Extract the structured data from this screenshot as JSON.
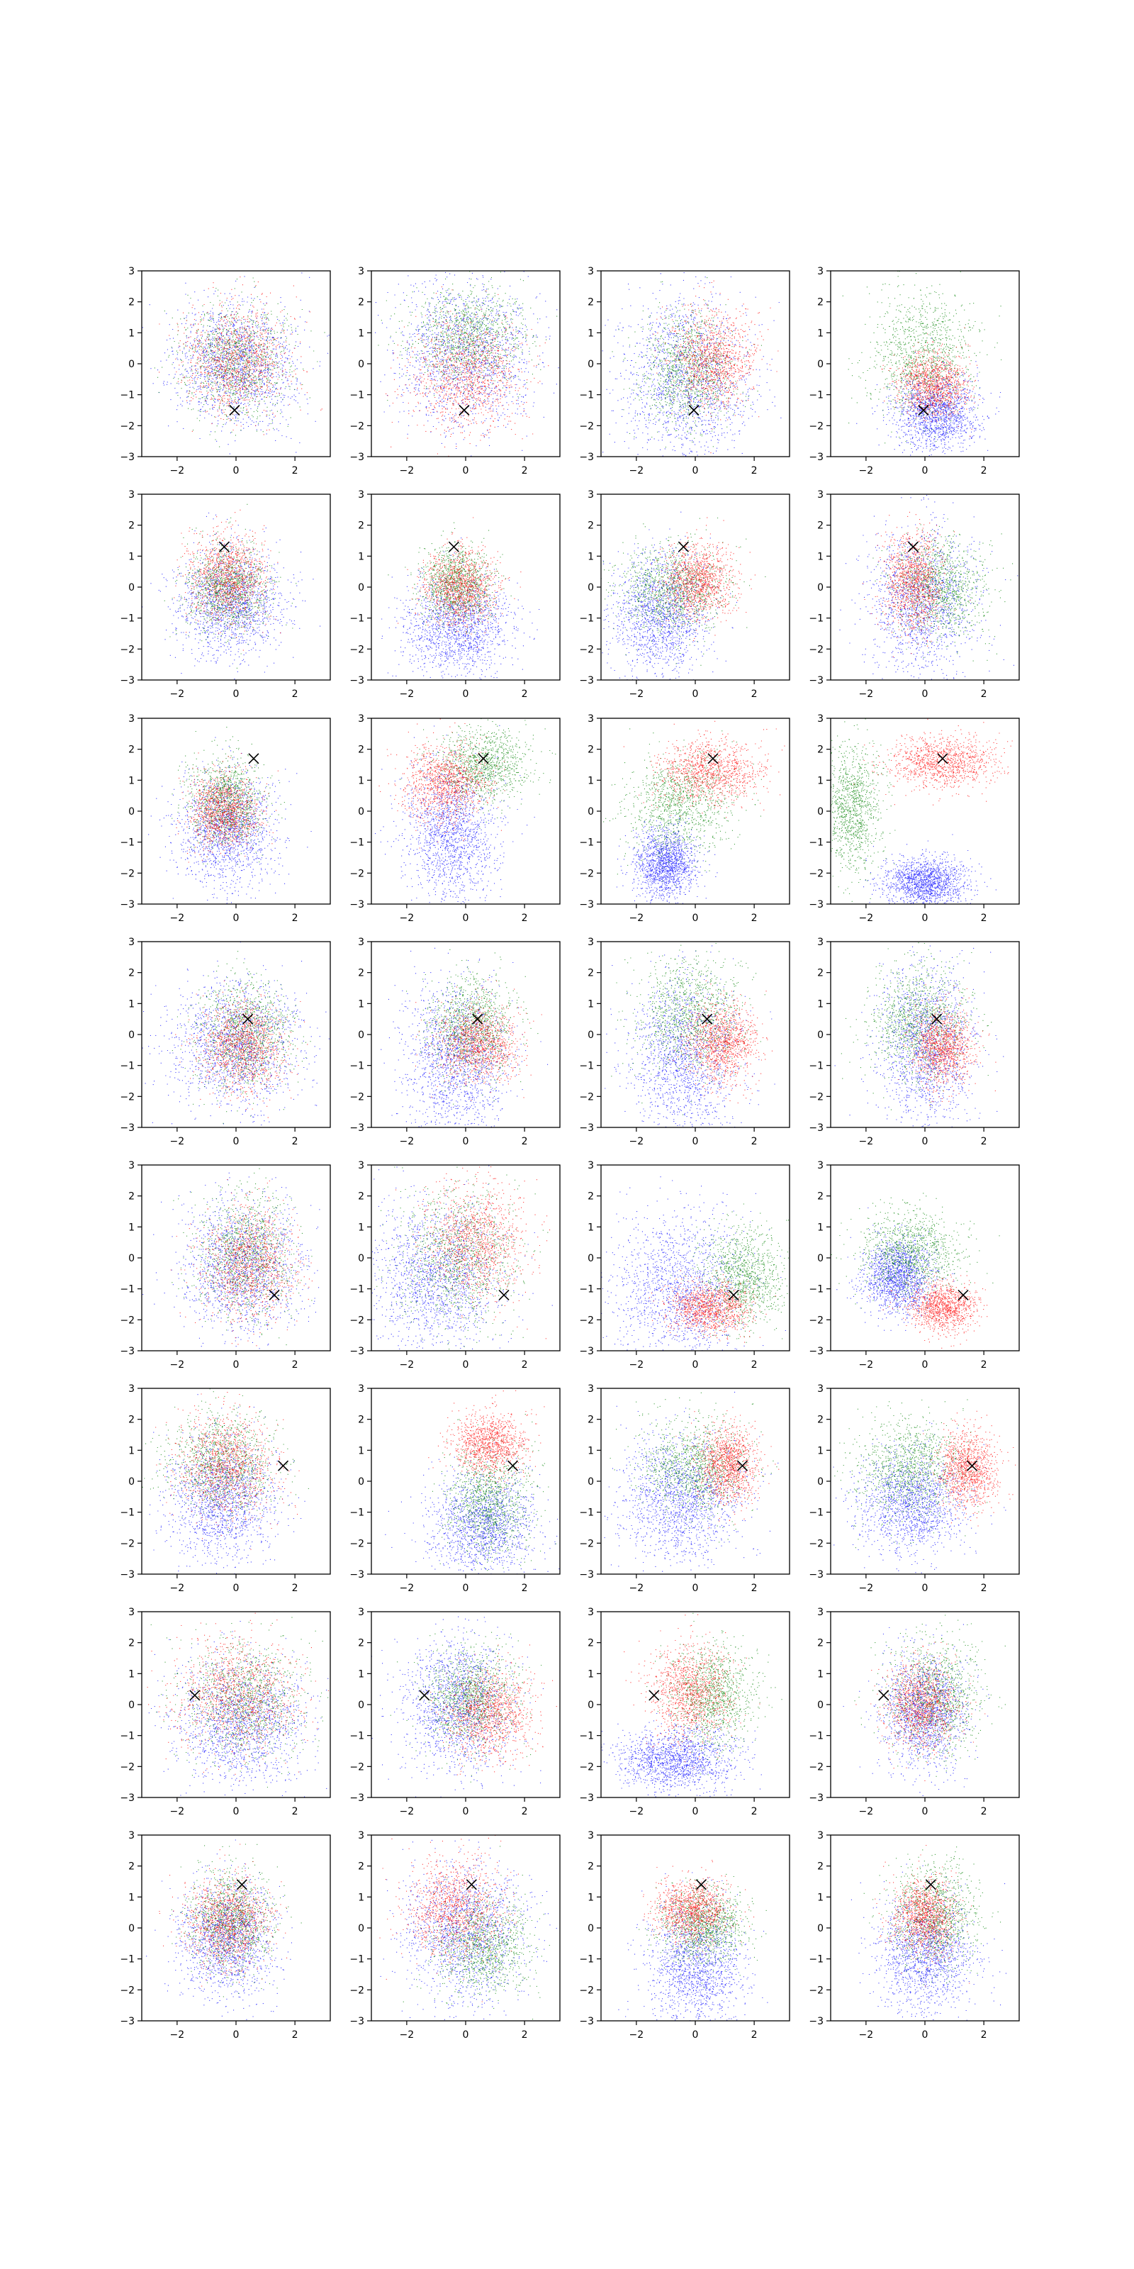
{
  "figure": {
    "grid_rows": 8,
    "grid_cols": 4,
    "background": "#ffffff",
    "axes_color": "#000000"
  },
  "colors": {
    "blue": "#0000ff",
    "green": "#008000",
    "red": "#ff0000",
    "marker": "#000000"
  },
  "point_counts": {
    "blue": 1500,
    "green": 1100,
    "red": 1100
  },
  "chart_data": {
    "type": "scatter",
    "title": "",
    "xlabel": "",
    "ylabel": "",
    "xlim": [
      -3.2,
      3.2
    ],
    "ylim": [
      -3,
      3
    ],
    "x_ticks": [
      -2,
      0,
      2
    ],
    "y_ticks": [
      -3,
      -2,
      -1,
      0,
      1,
      2,
      3
    ],
    "x_tick_labels": [
      "−2",
      "0",
      "2"
    ],
    "y_tick_labels": [
      "−3",
      "−2",
      "−1",
      "0",
      "1",
      "2",
      "3"
    ],
    "grid": false,
    "legend": "none",
    "series_colors": [
      "blue",
      "green",
      "red"
    ],
    "marker_symbol": "x",
    "rows": [
      {
        "marker": [
          -0.05,
          -1.5
        ],
        "panels": [
          {
            "blue": [
              0,
              0,
              1.0,
              1.0
            ],
            "green": [
              0,
              0.1,
              0.9,
              0.9
            ],
            "red": [
              0,
              0.1,
              0.85,
              0.85
            ]
          },
          {
            "blue": [
              0,
              0.3,
              1.2,
              1.2
            ],
            "green": [
              0,
              0.9,
              1.0,
              0.8
            ],
            "red": [
              0,
              -0.4,
              0.9,
              0.9
            ]
          },
          {
            "blue": [
              -0.3,
              -0.5,
              1.1,
              1.3
            ],
            "green": [
              -0.3,
              -0.2,
              0.8,
              0.9
            ],
            "red": [
              0.6,
              0.2,
              0.7,
              0.8
            ]
          },
          {
            "blue": [
              0.4,
              -1.6,
              0.7,
              0.6
            ],
            "green": [
              -0.1,
              0.3,
              0.9,
              1.0
            ],
            "red": [
              0.3,
              -0.7,
              0.6,
              0.5
            ]
          }
        ]
      },
      {
        "marker": [
          -0.4,
          1.3
        ],
        "panels": [
          {
            "blue": [
              -0.2,
              -0.5,
              0.9,
              0.9
            ],
            "green": [
              -0.3,
              0.0,
              0.7,
              0.7
            ],
            "red": [
              -0.3,
              0.3,
              0.65,
              0.7
            ]
          },
          {
            "blue": [
              -0.3,
              -1.3,
              0.9,
              0.8
            ],
            "green": [
              -0.3,
              0.1,
              0.6,
              0.6
            ],
            "red": [
              -0.2,
              0.0,
              0.6,
              0.6
            ]
          },
          {
            "blue": [
              -1.2,
              -0.9,
              0.8,
              1.0
            ],
            "green": [
              -0.8,
              -0.1,
              0.9,
              0.7
            ],
            "red": [
              0.1,
              0.2,
              0.6,
              0.6
            ]
          },
          {
            "blue": [
              -0.1,
              -0.5,
              0.9,
              1.2
            ],
            "green": [
              0.5,
              0.0,
              0.8,
              0.8
            ],
            "red": [
              -0.4,
              0.2,
              0.5,
              0.8
            ]
          }
        ]
      },
      {
        "marker": [
          0.6,
          1.7
        ],
        "panels": [
          {
            "blue": [
              -0.3,
              -0.6,
              0.8,
              0.9
            ],
            "green": [
              -0.3,
              0.3,
              0.6,
              0.7
            ],
            "red": [
              -0.4,
              0.0,
              0.6,
              0.6
            ]
          },
          {
            "blue": [
              -0.5,
              -0.7,
              0.8,
              1.1
            ],
            "green": [
              0.6,
              1.5,
              0.8,
              0.6
            ],
            "red": [
              -0.7,
              0.9,
              0.7,
              0.6
            ]
          },
          {
            "blue": [
              -1.0,
              -1.7,
              0.5,
              0.6
            ],
            "green": [
              -0.5,
              0.2,
              0.9,
              0.8
            ],
            "red": [
              0.5,
              1.3,
              0.9,
              0.5
            ]
          },
          {
            "blue": [
              0.0,
              -2.3,
              0.7,
              0.4
            ],
            "green": [
              -2.5,
              0.1,
              0.5,
              1.0
            ],
            "red": [
              0.6,
              1.6,
              0.9,
              0.4
            ]
          }
        ]
      },
      {
        "marker": [
          0.4,
          0.5
        ],
        "panels": [
          {
            "blue": [
              0,
              -0.3,
              1.1,
              1.0
            ],
            "green": [
              0.3,
              0.0,
              0.8,
              0.9
            ],
            "red": [
              0.2,
              -0.4,
              0.7,
              0.7
            ]
          },
          {
            "blue": [
              -0.3,
              -0.8,
              0.9,
              1.2
            ],
            "green": [
              0.2,
              0.3,
              0.7,
              0.8
            ],
            "red": [
              0.4,
              -0.3,
              0.7,
              0.6
            ]
          },
          {
            "blue": [
              -0.4,
              -0.8,
              0.9,
              1.3
            ],
            "green": [
              -0.2,
              0.6,
              0.9,
              0.9
            ],
            "red": [
              0.9,
              -0.3,
              0.6,
              0.6
            ]
          },
          {
            "blue": [
              0.0,
              -0.4,
              0.8,
              1.3
            ],
            "green": [
              -0.2,
              0.4,
              0.8,
              0.9
            ],
            "red": [
              0.6,
              -0.4,
              0.5,
              0.6
            ]
          }
        ]
      },
      {
        "marker": [
          1.3,
          -1.2
        ],
        "panels": [
          {
            "blue": [
              0.2,
              -0.3,
              1.0,
              1.1
            ],
            "green": [
              0.3,
              0.1,
              0.8,
              1.0
            ],
            "red": [
              0.4,
              -0.2,
              0.8,
              0.9
            ]
          },
          {
            "blue": [
              -1.0,
              -0.6,
              1.1,
              1.2
            ],
            "green": [
              -0.2,
              0.0,
              1.0,
              1.1
            ],
            "red": [
              0.3,
              0.5,
              0.8,
              0.9
            ]
          },
          {
            "blue": [
              -0.5,
              -1.0,
              1.1,
              1.2
            ],
            "green": [
              1.6,
              -0.6,
              0.7,
              0.8
            ],
            "red": [
              0.5,
              -1.6,
              0.7,
              0.4
            ]
          },
          {
            "blue": [
              -0.9,
              -0.6,
              0.6,
              0.6
            ],
            "green": [
              -0.5,
              0.2,
              0.9,
              0.7
            ],
            "red": [
              0.6,
              -1.6,
              0.6,
              0.4
            ]
          }
        ]
      },
      {
        "marker": [
          1.6,
          0.5
        ],
        "panels": [
          {
            "blue": [
              -0.5,
              -0.6,
              0.9,
              1.0
            ],
            "green": [
              -0.5,
              0.6,
              0.9,
              0.8
            ],
            "red": [
              -0.3,
              0.5,
              0.8,
              0.8
            ]
          },
          {
            "blue": [
              0.6,
              -1.4,
              0.9,
              0.8
            ],
            "green": [
              0.8,
              -0.6,
              0.7,
              0.9
            ],
            "red": [
              0.8,
              1.2,
              0.6,
              0.5
            ]
          },
          {
            "blue": [
              -0.5,
              -0.6,
              1.0,
              1.0
            ],
            "green": [
              0.0,
              0.5,
              0.9,
              0.8
            ],
            "red": [
              1.1,
              0.5,
              0.5,
              0.6
            ]
          },
          {
            "blue": [
              -0.5,
              -0.7,
              0.9,
              0.8
            ],
            "green": [
              -0.5,
              0.4,
              0.9,
              0.8
            ],
            "red": [
              1.4,
              0.4,
              0.5,
              0.6
            ]
          }
        ]
      },
      {
        "marker": [
          -1.4,
          0.3
        ],
        "panels": [
          {
            "blue": [
              0.2,
              -0.6,
              1.1,
              1.0
            ],
            "green": [
              0.3,
              0.2,
              1.0,
              0.9
            ],
            "red": [
              0.0,
              0.3,
              1.0,
              0.9
            ]
          },
          {
            "blue": [
              -0.3,
              0.0,
              0.9,
              1.1
            ],
            "green": [
              0.2,
              0.2,
              0.8,
              0.8
            ],
            "red": [
              0.8,
              -0.3,
              0.7,
              0.7
            ]
          },
          {
            "blue": [
              -0.6,
              -1.8,
              1.0,
              0.5
            ],
            "green": [
              0.6,
              0.3,
              0.7,
              0.8
            ],
            "red": [
              -0.2,
              0.4,
              0.7,
              0.8
            ]
          },
          {
            "blue": [
              0.0,
              -0.2,
              0.7,
              0.9
            ],
            "green": [
              0.3,
              0.3,
              0.8,
              0.9
            ],
            "red": [
              -0.1,
              0.0,
              0.6,
              0.7
            ]
          }
        ]
      },
      {
        "marker": [
          0.2,
          1.4
        ],
        "panels": [
          {
            "blue": [
              -0.3,
              -0.3,
              0.8,
              0.9
            ],
            "green": [
              -0.2,
              0.2,
              0.7,
              0.8
            ],
            "red": [
              -0.3,
              0.2,
              0.7,
              0.7
            ]
          },
          {
            "blue": [
              0.0,
              -0.1,
              1.0,
              1.1
            ],
            "green": [
              0.6,
              -0.6,
              0.8,
              0.8
            ],
            "red": [
              -0.4,
              0.6,
              0.8,
              0.8
            ]
          },
          {
            "blue": [
              0.0,
              -1.3,
              0.8,
              1.0
            ],
            "green": [
              0.3,
              0.1,
              0.7,
              0.6
            ],
            "red": [
              -0.1,
              0.6,
              0.6,
              0.5
            ]
          },
          {
            "blue": [
              0.0,
              -0.9,
              0.8,
              0.9
            ],
            "green": [
              0.3,
              0.4,
              0.7,
              0.8
            ],
            "red": [
              0.0,
              0.4,
              0.5,
              0.6
            ]
          }
        ]
      }
    ]
  }
}
